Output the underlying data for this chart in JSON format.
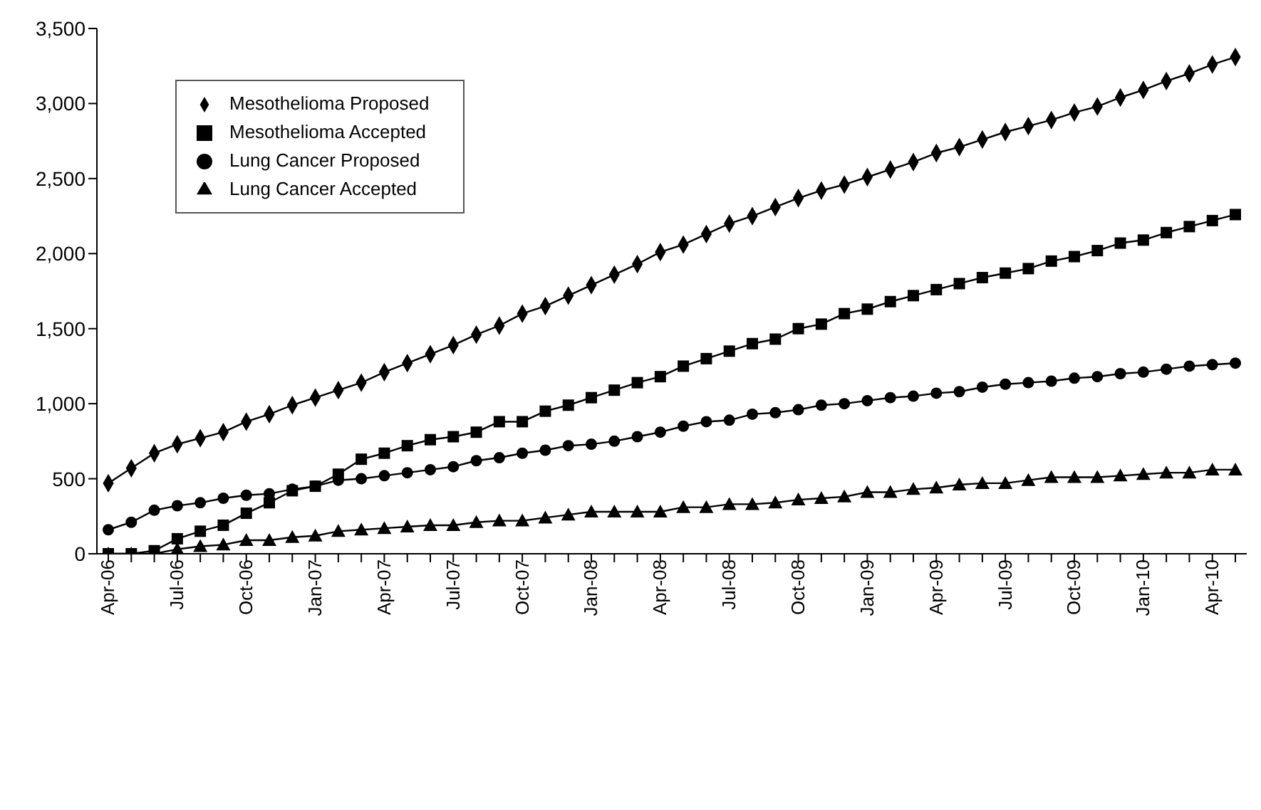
{
  "chart_data": {
    "type": "line",
    "categories": [
      "Apr-06",
      null,
      null,
      "Jul-06",
      null,
      null,
      "Oct-06",
      null,
      null,
      "Jan-07",
      null,
      null,
      "Apr-07",
      null,
      null,
      "Jul-07",
      null,
      null,
      "Oct-07",
      null,
      null,
      "Jan-08",
      null,
      null,
      "Apr-08",
      null,
      null,
      "Jul-08",
      null,
      null,
      "Oct-08",
      null,
      null,
      "Jan-09",
      null,
      null,
      "Apr-09",
      null,
      null,
      "Jul-09",
      null,
      null,
      "Oct-09",
      null,
      null,
      "Jan-10",
      null,
      null,
      "Apr-10",
      null
    ],
    "series": [
      {
        "name": "Mesothelioma Proposed",
        "color": "#000000",
        "marker": "diamond",
        "values": [
          470,
          570,
          670,
          730,
          770,
          810,
          880,
          930,
          990,
          1040,
          1090,
          1140,
          1210,
          1270,
          1330,
          1390,
          1460,
          1520,
          1600,
          1650,
          1720,
          1790,
          1860,
          1930,
          2010,
          2060,
          2130,
          2200,
          2250,
          2310,
          2370,
          2420,
          2460,
          2510,
          2560,
          2610,
          2670,
          2710,
          2760,
          2810,
          2850,
          2890,
          2940,
          2980,
          3040,
          3090,
          3150,
          3200,
          3260,
          3310
        ]
      },
      {
        "name": "Mesothelioma Accepted",
        "color": "#000000",
        "marker": "square",
        "values": [
          0,
          0,
          20,
          100,
          150,
          190,
          270,
          340,
          420,
          450,
          530,
          630,
          670,
          720,
          760,
          780,
          810,
          880,
          880,
          950,
          990,
          1040,
          1090,
          1140,
          1180,
          1250,
          1300,
          1350,
          1400,
          1430,
          1500,
          1530,
          1600,
          1630,
          1680,
          1720,
          1760,
          1800,
          1840,
          1870,
          1900,
          1950,
          1980,
          2020,
          2070,
          2090,
          2140,
          2180,
          2220,
          2260
        ]
      },
      {
        "name": "Lung Cancer Proposed",
        "color": "#000000",
        "marker": "circle",
        "values": [
          160,
          210,
          290,
          320,
          340,
          370,
          390,
          400,
          430,
          450,
          490,
          500,
          520,
          540,
          560,
          580,
          620,
          640,
          670,
          690,
          720,
          730,
          750,
          780,
          810,
          850,
          880,
          890,
          930,
          940,
          960,
          990,
          1000,
          1020,
          1040,
          1050,
          1070,
          1080,
          1110,
          1130,
          1140,
          1150,
          1170,
          1180,
          1200,
          1210,
          1230,
          1250,
          1260,
          1270
        ]
      },
      {
        "name": "Lung Cancer Accepted",
        "color": "#000000",
        "marker": "triangle",
        "values": [
          0,
          0,
          0,
          30,
          50,
          60,
          90,
          90,
          110,
          120,
          150,
          160,
          170,
          180,
          190,
          190,
          210,
          220,
          220,
          240,
          260,
          280,
          280,
          280,
          280,
          310,
          310,
          330,
          330,
          340,
          360,
          370,
          380,
          410,
          410,
          430,
          440,
          460,
          470,
          470,
          490,
          510,
          510,
          510,
          520,
          530,
          540,
          540,
          560,
          560
        ]
      }
    ],
    "ylim": [
      0,
      3500
    ],
    "yticks": [
      {
        "value": 0,
        "label": "0"
      },
      {
        "value": 500,
        "label": "500"
      },
      {
        "value": 1000,
        "label": "1,000"
      },
      {
        "value": 1500,
        "label": "1,500"
      },
      {
        "value": 2000,
        "label": "2,000"
      },
      {
        "value": 2500,
        "label": "2,500"
      },
      {
        "value": 3000,
        "label": "3,000"
      },
      {
        "value": 3500,
        "label": "3,500"
      }
    ],
    "grid": false,
    "legend": "top left",
    "line_style": "solid"
  }
}
